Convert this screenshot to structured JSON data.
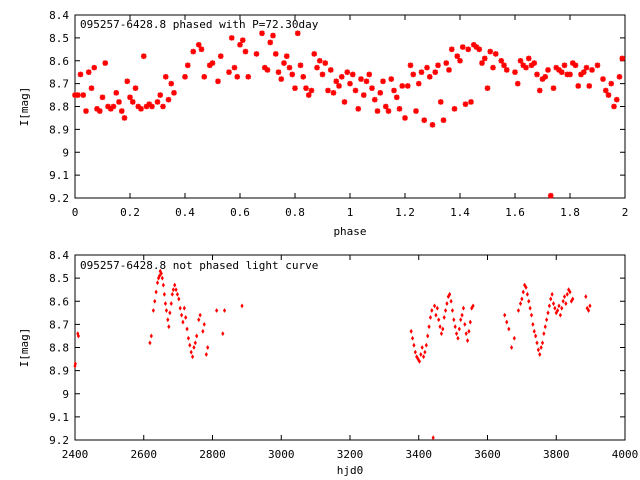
{
  "chart_data": [
    {
      "type": "scatter",
      "title": "095257-6428.8 phased with P=72.30day",
      "xlabel": "phase",
      "ylabel": "I[mag]",
      "xlim": [
        0,
        2
      ],
      "ylim": [
        8.4,
        9.2
      ],
      "y_inverted": true,
      "x_ticks": [
        "0",
        "0.2",
        "0.4",
        "0.6",
        "0.8",
        "1",
        "1.2",
        "1.4",
        "1.6",
        "1.8",
        "2"
      ],
      "y_ticks": [
        "8.4",
        "8.5",
        "8.6",
        "8.7",
        "8.8",
        "8.9",
        "9",
        "9.1",
        "9.2"
      ],
      "marker": "star",
      "color": "#ff0000",
      "points": [
        [
          0.0,
          8.75
        ],
        [
          0.01,
          8.75
        ],
        [
          0.02,
          8.66
        ],
        [
          0.03,
          8.75
        ],
        [
          0.04,
          8.82
        ],
        [
          0.05,
          8.65
        ],
        [
          0.06,
          8.72
        ],
        [
          0.07,
          8.63
        ],
        [
          0.08,
          8.81
        ],
        [
          0.09,
          8.82
        ],
        [
          0.1,
          8.76
        ],
        [
          0.11,
          8.61
        ],
        [
          0.12,
          8.8
        ],
        [
          0.13,
          8.81
        ],
        [
          0.14,
          8.8
        ],
        [
          0.15,
          8.74
        ],
        [
          0.16,
          8.78
        ],
        [
          0.17,
          8.82
        ],
        [
          0.18,
          8.85
        ],
        [
          0.19,
          8.69
        ],
        [
          0.2,
          8.76
        ],
        [
          0.21,
          8.78
        ],
        [
          0.22,
          8.72
        ],
        [
          0.23,
          8.8
        ],
        [
          0.24,
          8.81
        ],
        [
          0.25,
          8.58
        ],
        [
          0.26,
          8.8
        ],
        [
          0.27,
          8.79
        ],
        [
          0.28,
          8.8
        ],
        [
          0.3,
          8.78
        ],
        [
          0.31,
          8.75
        ],
        [
          0.32,
          8.8
        ],
        [
          0.33,
          8.67
        ],
        [
          0.34,
          8.77
        ],
        [
          0.35,
          8.7
        ],
        [
          0.36,
          8.74
        ],
        [
          0.4,
          8.67
        ],
        [
          0.41,
          8.62
        ],
        [
          0.43,
          8.56
        ],
        [
          0.45,
          8.53
        ],
        [
          0.46,
          8.55
        ],
        [
          0.47,
          8.67
        ],
        [
          0.49,
          8.62
        ],
        [
          0.5,
          8.61
        ],
        [
          0.52,
          8.69
        ],
        [
          0.53,
          8.58
        ],
        [
          0.56,
          8.65
        ],
        [
          0.57,
          8.5
        ],
        [
          0.58,
          8.63
        ],
        [
          0.59,
          8.67
        ],
        [
          0.6,
          8.53
        ],
        [
          0.61,
          8.51
        ],
        [
          0.62,
          8.56
        ],
        [
          0.63,
          8.67
        ],
        [
          0.66,
          8.57
        ],
        [
          0.68,
          8.48
        ],
        [
          0.69,
          8.63
        ],
        [
          0.7,
          8.64
        ],
        [
          0.71,
          8.52
        ],
        [
          0.72,
          8.49
        ],
        [
          0.73,
          8.57
        ],
        [
          0.74,
          8.65
        ],
        [
          0.75,
          8.68
        ],
        [
          0.76,
          8.61
        ],
        [
          0.77,
          8.58
        ],
        [
          0.78,
          8.63
        ],
        [
          0.79,
          8.66
        ],
        [
          0.8,
          8.72
        ],
        [
          0.81,
          8.48
        ],
        [
          0.82,
          8.62
        ],
        [
          0.83,
          8.67
        ],
        [
          0.84,
          8.72
        ],
        [
          0.85,
          8.75
        ],
        [
          0.86,
          8.73
        ],
        [
          0.87,
          8.57
        ],
        [
          0.88,
          8.63
        ],
        [
          0.89,
          8.6
        ],
        [
          0.9,
          8.66
        ],
        [
          0.91,
          8.61
        ],
        [
          0.92,
          8.73
        ],
        [
          0.93,
          8.64
        ],
        [
          0.94,
          8.74
        ],
        [
          0.95,
          8.69
        ],
        [
          0.96,
          8.71
        ],
        [
          0.97,
          8.67
        ],
        [
          0.98,
          8.78
        ],
        [
          0.99,
          8.65
        ],
        [
          1.0,
          8.7
        ],
        [
          1.01,
          8.66
        ],
        [
          1.02,
          8.73
        ],
        [
          1.03,
          8.81
        ],
        [
          1.04,
          8.68
        ],
        [
          1.05,
          8.75
        ],
        [
          1.06,
          8.69
        ],
        [
          1.07,
          8.66
        ],
        [
          1.08,
          8.72
        ],
        [
          1.09,
          8.77
        ],
        [
          1.1,
          8.82
        ],
        [
          1.11,
          8.74
        ],
        [
          1.12,
          8.69
        ],
        [
          1.13,
          8.8
        ],
        [
          1.14,
          8.82
        ],
        [
          1.15,
          8.68
        ],
        [
          1.16,
          8.73
        ],
        [
          1.17,
          8.76
        ],
        [
          1.18,
          8.81
        ],
        [
          1.19,
          8.71
        ],
        [
          1.2,
          8.85
        ],
        [
          1.21,
          8.71
        ],
        [
          1.22,
          8.62
        ],
        [
          1.23,
          8.66
        ],
        [
          1.24,
          8.82
        ],
        [
          1.25,
          8.7
        ],
        [
          1.26,
          8.65
        ],
        [
          1.27,
          8.86
        ],
        [
          1.28,
          8.63
        ],
        [
          1.29,
          8.67
        ],
        [
          1.3,
          8.88
        ],
        [
          1.31,
          8.65
        ],
        [
          1.32,
          8.62
        ],
        [
          1.33,
          8.78
        ],
        [
          1.34,
          8.86
        ],
        [
          1.35,
          8.61
        ],
        [
          1.36,
          8.64
        ],
        [
          1.37,
          8.55
        ],
        [
          1.38,
          8.81
        ],
        [
          1.39,
          8.58
        ],
        [
          1.4,
          8.6
        ],
        [
          1.41,
          8.54
        ],
        [
          1.42,
          8.79
        ],
        [
          1.43,
          8.55
        ],
        [
          1.44,
          8.78
        ],
        [
          1.45,
          8.53
        ],
        [
          1.46,
          8.54
        ],
        [
          1.47,
          8.55
        ],
        [
          1.48,
          8.61
        ],
        [
          1.49,
          8.59
        ],
        [
          1.5,
          8.72
        ],
        [
          1.51,
          8.56
        ],
        [
          1.52,
          8.63
        ],
        [
          1.53,
          8.57
        ],
        [
          1.55,
          8.6
        ],
        [
          1.56,
          8.62
        ],
        [
          1.57,
          8.64
        ],
        [
          1.6,
          8.65
        ],
        [
          1.61,
          8.7
        ],
        [
          1.62,
          8.6
        ],
        [
          1.63,
          8.62
        ],
        [
          1.64,
          8.63
        ],
        [
          1.65,
          8.59
        ],
        [
          1.66,
          8.62
        ],
        [
          1.67,
          8.61
        ],
        [
          1.68,
          8.66
        ],
        [
          1.69,
          8.73
        ],
        [
          1.7,
          8.68
        ],
        [
          1.71,
          8.67
        ],
        [
          1.72,
          8.64
        ],
        [
          1.73,
          9.19
        ],
        [
          1.74,
          8.72
        ],
        [
          1.75,
          8.63
        ],
        [
          1.76,
          8.64
        ],
        [
          1.77,
          8.65
        ],
        [
          1.78,
          8.62
        ],
        [
          1.79,
          8.66
        ],
        [
          1.8,
          8.66
        ],
        [
          1.81,
          8.61
        ],
        [
          1.82,
          8.62
        ],
        [
          1.83,
          8.71
        ],
        [
          1.84,
          8.66
        ],
        [
          1.85,
          8.65
        ],
        [
          1.86,
          8.63
        ],
        [
          1.87,
          8.71
        ],
        [
          1.88,
          8.64
        ],
        [
          1.9,
          8.62
        ],
        [
          1.92,
          8.68
        ],
        [
          1.93,
          8.73
        ],
        [
          1.94,
          8.75
        ],
        [
          1.95,
          8.7
        ],
        [
          1.96,
          8.8
        ],
        [
          1.97,
          8.77
        ],
        [
          1.98,
          8.67
        ],
        [
          1.99,
          8.59
        ]
      ]
    },
    {
      "type": "scatter",
      "title": "095257-6428.8 not phased light curve",
      "xlabel": "hjd0",
      "ylabel": "I[mag]",
      "xlim": [
        2400,
        4000
      ],
      "ylim": [
        8.4,
        9.2
      ],
      "y_inverted": true,
      "x_ticks": [
        "2400",
        "2600",
        "2800",
        "3000",
        "3200",
        "3400",
        "3600",
        "3800",
        "4000"
      ],
      "y_ticks": [
        "8.4",
        "8.5",
        "8.6",
        "8.7",
        "8.8",
        "8.9",
        "9",
        "9.1",
        "9.2"
      ],
      "marker": "dot",
      "color": "#ff0000",
      "points": [
        [
          2400,
          8.88
        ],
        [
          2401,
          8.87
        ],
        [
          2408,
          8.74
        ],
        [
          2410,
          8.75
        ],
        [
          2618,
          8.78
        ],
        [
          2622,
          8.75
        ],
        [
          2628,
          8.64
        ],
        [
          2632,
          8.6
        ],
        [
          2636,
          8.56
        ],
        [
          2640,
          8.52
        ],
        [
          2643,
          8.5
        ],
        [
          2646,
          8.49
        ],
        [
          2648,
          8.47
        ],
        [
          2651,
          8.48
        ],
        [
          2654,
          8.5
        ],
        [
          2657,
          8.53
        ],
        [
          2660,
          8.57
        ],
        [
          2663,
          8.61
        ],
        [
          2666,
          8.64
        ],
        [
          2670,
          8.68
        ],
        [
          2673,
          8.71
        ],
        [
          2676,
          8.65
        ],
        [
          2680,
          8.61
        ],
        [
          2683,
          8.57
        ],
        [
          2686,
          8.55
        ],
        [
          2690,
          8.53
        ],
        [
          2694,
          8.55
        ],
        [
          2698,
          8.57
        ],
        [
          2702,
          8.59
        ],
        [
          2706,
          8.63
        ],
        [
          2710,
          8.66
        ],
        [
          2714,
          8.69
        ],
        [
          2718,
          8.63
        ],
        [
          2722,
          8.67
        ],
        [
          2726,
          8.72
        ],
        [
          2730,
          8.76
        ],
        [
          2734,
          8.79
        ],
        [
          2738,
          8.82
        ],
        [
          2742,
          8.84
        ],
        [
          2746,
          8.8
        ],
        [
          2750,
          8.78
        ],
        [
          2754,
          8.75
        ],
        [
          2760,
          8.68
        ],
        [
          2764,
          8.66
        ],
        [
          2772,
          8.73
        ],
        [
          2776,
          8.7
        ],
        [
          2782,
          8.83
        ],
        [
          2786,
          8.8
        ],
        [
          2812,
          8.64
        ],
        [
          2830,
          8.74
        ],
        [
          2835,
          8.64
        ],
        [
          2886,
          8.62
        ],
        [
          3378,
          8.73
        ],
        [
          3382,
          8.76
        ],
        [
          3386,
          8.79
        ],
        [
          3390,
          8.82
        ],
        [
          3394,
          8.84
        ],
        [
          3398,
          8.85
        ],
        [
          3402,
          8.86
        ],
        [
          3406,
          8.83
        ],
        [
          3410,
          8.8
        ],
        [
          3414,
          8.84
        ],
        [
          3418,
          8.82
        ],
        [
          3422,
          8.79
        ],
        [
          3426,
          8.75
        ],
        [
          3430,
          8.71
        ],
        [
          3434,
          8.67
        ],
        [
          3438,
          8.64
        ],
        [
          3442,
          9.19
        ],
        [
          3446,
          8.62
        ],
        [
          3450,
          8.66
        ],
        [
          3454,
          8.63
        ],
        [
          3458,
          8.68
        ],
        [
          3462,
          8.71
        ],
        [
          3466,
          8.74
        ],
        [
          3470,
          8.72
        ],
        [
          3474,
          8.67
        ],
        [
          3478,
          8.64
        ],
        [
          3482,
          8.61
        ],
        [
          3486,
          8.58
        ],
        [
          3490,
          8.57
        ],
        [
          3494,
          8.6
        ],
        [
          3498,
          8.64
        ],
        [
          3502,
          8.68
        ],
        [
          3506,
          8.71
        ],
        [
          3510,
          8.74
        ],
        [
          3514,
          8.76
        ],
        [
          3518,
          8.72
        ],
        [
          3522,
          8.68
        ],
        [
          3526,
          8.66
        ],
        [
          3530,
          8.63
        ],
        [
          3534,
          8.7
        ],
        [
          3538,
          8.74
        ],
        [
          3542,
          8.77
        ],
        [
          3546,
          8.73
        ],
        [
          3550,
          8.69
        ],
        [
          3554,
          8.63
        ],
        [
          3558,
          8.62
        ],
        [
          3650,
          8.66
        ],
        [
          3656,
          8.69
        ],
        [
          3662,
          8.72
        ],
        [
          3670,
          8.8
        ],
        [
          3678,
          8.76
        ],
        [
          3690,
          8.64
        ],
        [
          3696,
          8.61
        ],
        [
          3700,
          8.59
        ],
        [
          3704,
          8.56
        ],
        [
          3708,
          8.53
        ],
        [
          3712,
          8.54
        ],
        [
          3716,
          8.57
        ],
        [
          3720,
          8.6
        ],
        [
          3724,
          8.63
        ],
        [
          3728,
          8.66
        ],
        [
          3732,
          8.7
        ],
        [
          3736,
          8.73
        ],
        [
          3740,
          8.75
        ],
        [
          3744,
          8.78
        ],
        [
          3748,
          8.81
        ],
        [
          3752,
          8.83
        ],
        [
          3756,
          8.8
        ],
        [
          3760,
          8.78
        ],
        [
          3764,
          8.74
        ],
        [
          3768,
          8.71
        ],
        [
          3772,
          8.68
        ],
        [
          3776,
          8.65
        ],
        [
          3780,
          8.62
        ],
        [
          3784,
          8.59
        ],
        [
          3788,
          8.57
        ],
        [
          3792,
          8.61
        ],
        [
          3796,
          8.63
        ],
        [
          3800,
          8.65
        ],
        [
          3804,
          8.64
        ],
        [
          3808,
          8.62
        ],
        [
          3812,
          8.66
        ],
        [
          3816,
          8.63
        ],
        [
          3820,
          8.6
        ],
        [
          3824,
          8.58
        ],
        [
          3828,
          8.61
        ],
        [
          3832,
          8.57
        ],
        [
          3836,
          8.55
        ],
        [
          3840,
          8.56
        ],
        [
          3844,
          8.6
        ],
        [
          3848,
          8.59
        ],
        [
          3886,
          8.58
        ],
        [
          3890,
          8.63
        ],
        [
          3894,
          8.64
        ],
        [
          3898,
          8.62
        ]
      ]
    }
  ]
}
